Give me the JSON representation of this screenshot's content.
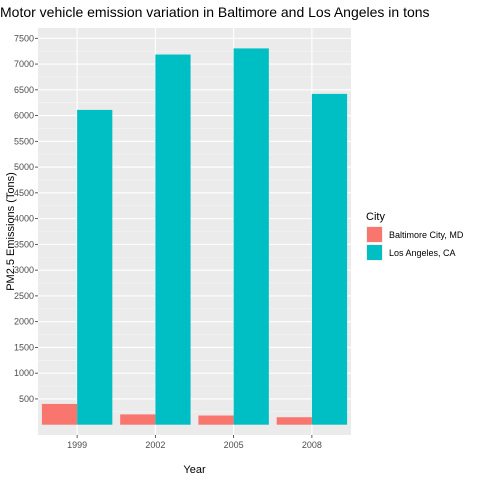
{
  "chart_data": {
    "type": "bar",
    "title": "Motor vehicle emission variation in Baltimore and Los Angeles in tons",
    "xlabel": "Year",
    "ylabel": "PM2.5 Emissions (Tons)",
    "categories": [
      "1999",
      "2002",
      "2005",
      "2008"
    ],
    "series": [
      {
        "name": "Baltimore City, MD",
        "color": "#F8766D",
        "values": [
          403,
          200,
          178,
          145
        ]
      },
      {
        "name": "Los Angeles, CA",
        "color": "#00BFC4",
        "values": [
          6110,
          7185,
          7304,
          6421
        ]
      }
    ],
    "ylim": [
      -200,
      7700
    ],
    "yticks": [
      500,
      1000,
      1500,
      2000,
      2500,
      3000,
      3500,
      4000,
      4500,
      5000,
      5500,
      6000,
      6500,
      7000,
      7500
    ],
    "grid": true,
    "legend": {
      "title": "City",
      "position": "right"
    },
    "panel_background": "#EBEBEB"
  }
}
